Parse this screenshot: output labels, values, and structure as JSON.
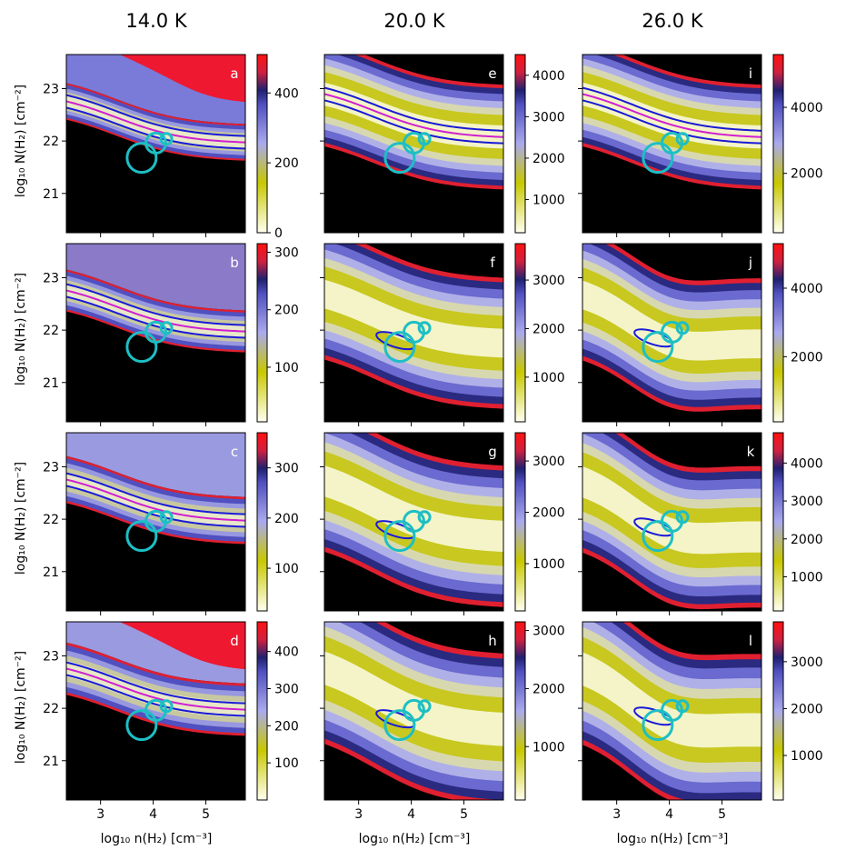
{
  "figure": {
    "column_titles": [
      "14.0 K",
      "20.0 K",
      "26.0 K"
    ],
    "ylabel": "log₁₀ N(H₂) [cm⁻²]",
    "xlabel": "log₁₀ n(H₂) [cm⁻³]",
    "x_ticks": [
      "3",
      "4",
      "5"
    ],
    "y_ticks": [
      "21",
      "22",
      "23"
    ]
  },
  "chart_data": [
    {
      "type": "heatmap",
      "panel": "a",
      "column_title": "14.0 K",
      "x_range": [
        2.35,
        5.75
      ],
      "y_range": [
        20.25,
        23.65
      ],
      "colorbar_ticks": [
        0,
        200,
        400
      ],
      "colorbar_range": [
        0,
        510
      ]
    },
    {
      "type": "heatmap",
      "panel": "b",
      "column_title": "14.0 K",
      "x_range": [
        2.35,
        5.75
      ],
      "y_range": [
        20.25,
        23.65
      ],
      "colorbar_ticks": [
        100,
        200,
        300
      ],
      "colorbar_range": [
        5,
        315
      ]
    },
    {
      "type": "heatmap",
      "panel": "c",
      "column_title": "14.0 K",
      "x_range": [
        2.35,
        5.75
      ],
      "y_range": [
        20.25,
        23.65
      ],
      "colorbar_ticks": [
        100,
        200,
        300
      ],
      "colorbar_range": [
        15,
        370
      ]
    },
    {
      "type": "heatmap",
      "panel": "d",
      "column_title": "14.0 K",
      "x_range": [
        2.35,
        5.75
      ],
      "y_range": [
        20.25,
        23.65
      ],
      "colorbar_ticks": [
        100,
        200,
        300,
        400
      ],
      "colorbar_range": [
        0,
        480
      ]
    },
    {
      "type": "heatmap",
      "panel": "e",
      "column_title": "20.0 K",
      "x_range": [
        2.35,
        5.75
      ],
      "y_range": [
        20.25,
        23.65
      ],
      "colorbar_ticks": [
        1000,
        2000,
        3000,
        4000
      ],
      "colorbar_range": [
        200,
        4500
      ]
    },
    {
      "type": "heatmap",
      "panel": "f",
      "column_title": "20.0 K",
      "x_range": [
        2.35,
        5.75
      ],
      "y_range": [
        20.25,
        23.65
      ],
      "colorbar_ticks": [
        1000,
        2000,
        3000
      ],
      "colorbar_range": [
        80,
        3750
      ]
    },
    {
      "type": "heatmap",
      "panel": "g",
      "column_title": "20.0 K",
      "x_range": [
        2.35,
        5.75
      ],
      "y_range": [
        20.25,
        23.65
      ],
      "colorbar_ticks": [
        1000,
        2000,
        3000
      ],
      "colorbar_range": [
        80,
        3550
      ]
    },
    {
      "type": "heatmap",
      "panel": "h",
      "column_title": "20.0 K",
      "x_range": [
        2.35,
        5.75
      ],
      "y_range": [
        20.25,
        23.65
      ],
      "colorbar_ticks": [
        1000,
        2000,
        3000
      ],
      "colorbar_range": [
        80,
        3150
      ]
    },
    {
      "type": "heatmap",
      "panel": "i",
      "column_title": "26.0 K",
      "x_range": [
        2.35,
        5.75
      ],
      "y_range": [
        20.25,
        23.65
      ],
      "colorbar_ticks": [
        2000,
        4000
      ],
      "colorbar_range": [
        200,
        5600
      ]
    },
    {
      "type": "heatmap",
      "panel": "j",
      "column_title": "26.0 K",
      "x_range": [
        2.35,
        5.75
      ],
      "y_range": [
        20.25,
        23.65
      ],
      "colorbar_ticks": [
        2000,
        4000
      ],
      "colorbar_range": [
        100,
        5300
      ]
    },
    {
      "type": "heatmap",
      "panel": "k",
      "column_title": "26.0 K",
      "x_range": [
        2.35,
        5.75
      ],
      "y_range": [
        20.25,
        23.65
      ],
      "colorbar_ticks": [
        1000,
        2000,
        3000,
        4000
      ],
      "colorbar_range": [
        100,
        4800
      ]
    },
    {
      "type": "heatmap",
      "panel": "l",
      "column_title": "26.0 K",
      "x_range": [
        2.35,
        5.75
      ],
      "y_range": [
        20.25,
        23.65
      ],
      "colorbar_ticks": [
        1000,
        2000,
        3000
      ],
      "colorbar_range": [
        50,
        3850
      ]
    }
  ],
  "circles": [
    {
      "x": 3.78,
      "y": 21.68
    },
    {
      "x": 4.05,
      "y": 21.96
    },
    {
      "x": 4.25,
      "y": 22.04
    }
  ],
  "colors": {
    "circle": "#1dbfc4",
    "contour_blue": "#1a1ad8",
    "contour_magenta": "#d020d0",
    "contour_red": "#e0303a",
    "background_black": "#000000"
  }
}
